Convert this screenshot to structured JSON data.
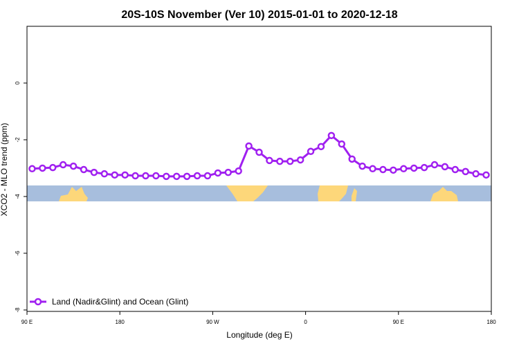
{
  "chart_data": {
    "type": "line",
    "title": "20S-10S November (Ver 10)   2015-01-01 to 2020-12-18",
    "x_label": "Longitude (deg E)",
    "y_label": "XCO2 - MLO trend (ppm)",
    "xlim": [
      90,
      540
    ],
    "ylim": [
      -8.05,
      2
    ],
    "xticks": [
      {
        "value": 90,
        "label": "90 E"
      },
      180,
      {
        "value": 270,
        "label": "90 W"
      },
      {
        "value": 360,
        "label": "0"
      },
      {
        "value": 450,
        "label": "90 E"
      },
      {
        "value": 540,
        "label": "180"
      }
    ],
    "yticks": [
      0,
      -2,
      -4,
      -6,
      -8
    ],
    "legend": "bottomleft",
    "x": [
      95,
      105,
      115,
      125,
      135,
      145,
      155,
      165,
      175,
      185,
      195,
      205,
      215,
      225,
      235,
      245,
      255,
      265,
      275,
      285,
      295,
      305,
      315,
      325,
      335,
      345,
      355,
      365,
      375,
      385,
      395,
      405,
      415,
      425,
      435,
      445,
      455,
      465,
      475,
      485,
      495,
      505,
      515,
      525,
      535
    ],
    "series": [
      {
        "name": "Land (Nadir&Glint) and Ocean (Glint)",
        "color": "#a020f0",
        "values": [
          -3.02,
          -3.0,
          -2.98,
          -2.88,
          -2.93,
          -3.05,
          -3.15,
          -3.2,
          -3.24,
          -3.24,
          -3.27,
          -3.27,
          -3.27,
          -3.29,
          -3.29,
          -3.29,
          -3.27,
          -3.27,
          -3.17,
          -3.15,
          -3.1,
          -2.22,
          -2.44,
          -2.73,
          -2.76,
          -2.76,
          -2.71,
          -2.41,
          -2.24,
          -1.85,
          -2.15,
          -2.68,
          -2.93,
          -3.02,
          -3.05,
          -3.07,
          -3.02,
          -3.0,
          -2.98,
          -2.88,
          -2.95,
          -3.05,
          -3.12,
          -3.2,
          -3.24
        ]
      }
    ]
  }
}
